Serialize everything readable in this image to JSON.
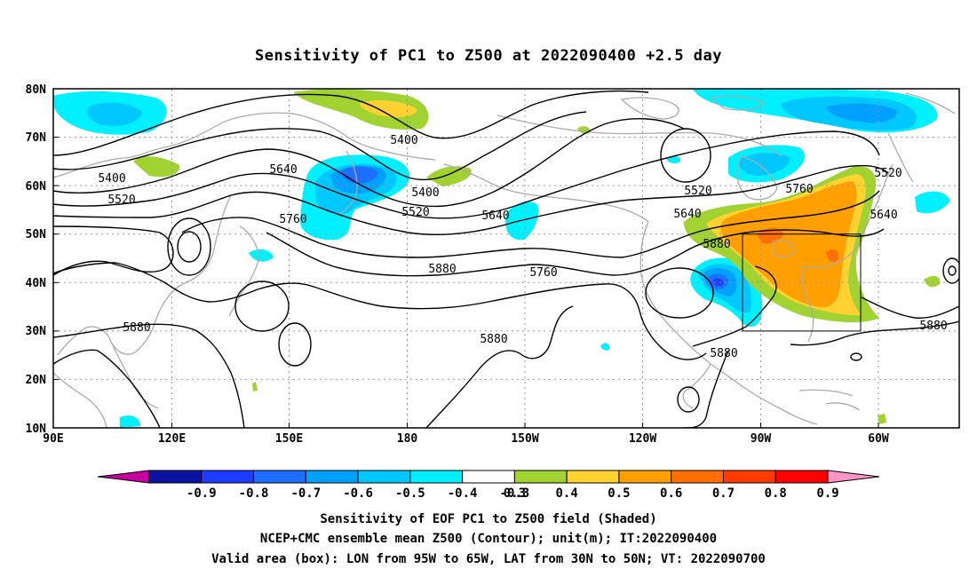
{
  "title": "Sensitivity of PC1 to Z500 at 2022090400 +2.5 day",
  "map": {
    "lat_labels": [
      "80N",
      "70N",
      "60N",
      "50N",
      "40N",
      "30N",
      "20N",
      "10N"
    ],
    "lon_labels": [
      "90E",
      "120E",
      "150E",
      "180",
      "150W",
      "120W",
      "90W",
      "60W"
    ],
    "contour_labels": [
      {
        "text": "5400"
      },
      {
        "text": "5400"
      },
      {
        "text": "5400"
      },
      {
        "text": "5520"
      },
      {
        "text": "5520"
      },
      {
        "text": "5520"
      },
      {
        "text": "5520"
      },
      {
        "text": "5640"
      },
      {
        "text": "5640"
      },
      {
        "text": "5640"
      },
      {
        "text": "5640"
      },
      {
        "text": "5760"
      },
      {
        "text": "5760"
      },
      {
        "text": "5760"
      },
      {
        "text": "5880"
      },
      {
        "text": "5880"
      },
      {
        "text": "5880"
      },
      {
        "text": "5880"
      },
      {
        "text": "5880"
      },
      {
        "text": "5880"
      }
    ],
    "valid_box": {
      "lon_west": "95W",
      "lon_east": "65W",
      "lat_south": "30N",
      "lat_north": "50N"
    }
  },
  "colorbar": {
    "labels": [
      "-0.9",
      "-0.8",
      "-0.7",
      "-0.6",
      "-0.5",
      "-0.4",
      "-0.3",
      "0.3",
      "0.4",
      "0.5",
      "0.6",
      "0.7",
      "0.8",
      "0.9"
    ],
    "colors": [
      "#0a14a0",
      "#1e3cff",
      "#1e6eff",
      "#00a0ff",
      "#00c8ff",
      "#00f0ff",
      "#ffffff",
      "#a0d232",
      "#ffd232",
      "#ffa000",
      "#ff6e00",
      "#ff3c00",
      "#ff0000"
    ],
    "left_arrow_color": "#c800a0",
    "right_arrow_color": "#ff96c8"
  },
  "footer": {
    "line1": "Sensitivity of EOF PC1 to Z500 field (Shaded)",
    "line2": "NCEP+CMC ensemble mean Z500 (Contour); unit(m); IT:2022090400",
    "line3": "Valid area (box): LON from 95W to 65W, LAT from 30N to 50N; VT: 2022090700"
  }
}
